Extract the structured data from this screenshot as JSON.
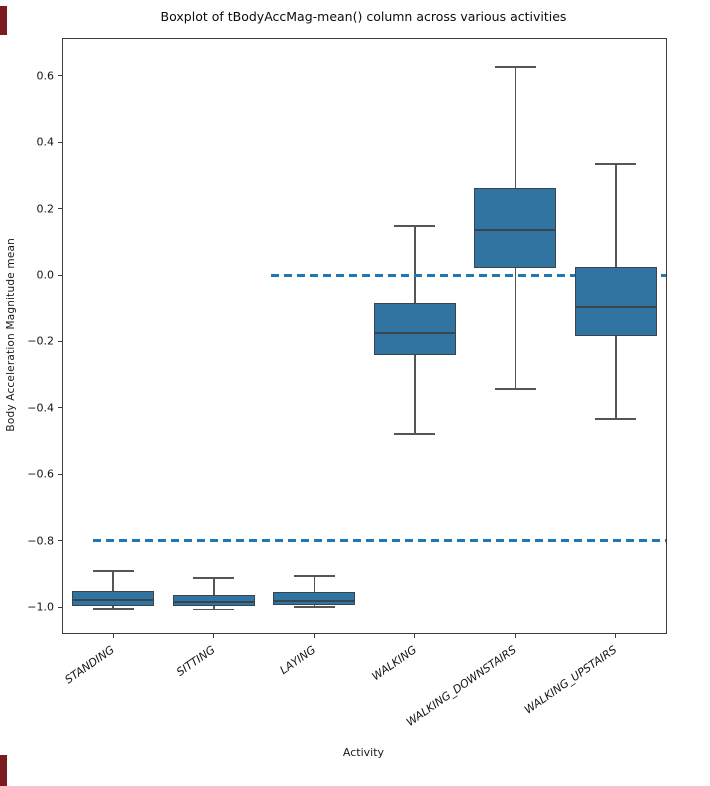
{
  "figure": {
    "title": "Boxplot of tBodyAccMag-mean() column across various activities",
    "xlabel": "Activity",
    "ylabel": "Body Acceleration Magnitude mean"
  },
  "chart_data": {
    "type": "boxplot",
    "title": "Boxplot of tBodyAccMag-mean() column across various activities",
    "xlabel": "Activity",
    "ylabel": "Body Acceleration Magnitude mean",
    "categories": [
      "STANDING",
      "SITTING",
      "LAYING",
      "WALKING",
      "WALKING_DOWNSTAIRS",
      "WALKING_UPSTAIRS"
    ],
    "series": [
      {
        "name": "STANDING",
        "whisker_low": -1.005,
        "q1": -0.995,
        "median": -0.978,
        "q3": -0.95,
        "whisker_high": -0.89
      },
      {
        "name": "SITTING",
        "whisker_low": -1.007,
        "q1": -0.995,
        "median": -0.983,
        "q3": -0.962,
        "whisker_high": -0.911
      },
      {
        "name": "LAYING",
        "whisker_low": -0.999,
        "q1": -0.992,
        "median": -0.98,
        "q3": -0.953,
        "whisker_high": -0.905
      },
      {
        "name": "WALKING",
        "whisker_low": -0.478,
        "q1": -0.241,
        "median": -0.174,
        "q3": -0.084,
        "whisker_high": 0.147
      },
      {
        "name": "WALKING_DOWNSTAIRS",
        "whisker_low": -0.343,
        "q1": 0.021,
        "median": 0.135,
        "q3": 0.262,
        "whisker_high": 0.626
      },
      {
        "name": "WALKING_UPSTAIRS",
        "whisker_low": -0.433,
        "q1": -0.183,
        "median": -0.096,
        "q3": 0.024,
        "whisker_high": 0.334
      }
    ],
    "y_ticks": [
      0.6,
      0.4,
      0.2,
      0.0,
      -0.2,
      -0.4,
      -0.6,
      -0.8,
      -1.0
    ],
    "y_tick_labels": [
      "0.6",
      "0.4",
      "0.2",
      "0.0",
      "−0.2",
      "−0.4",
      "−0.6",
      "−0.8",
      "−1.0"
    ],
    "ylim": [
      -1.077,
      0.71
    ],
    "grid": false,
    "legend": null,
    "reference_lines": [
      {
        "y": 0.0,
        "style": "dashed",
        "color": "#1f77b4",
        "x_start_frac": 0.345,
        "x_end_frac": 1.0
      },
      {
        "y": -0.8,
        "style": "dashed",
        "color": "#1f77b4",
        "x_start_frac": 0.05,
        "x_end_frac": 1.0
      }
    ],
    "colors": {
      "box_fill": "#3274a1",
      "box_edge": "#36454f",
      "median": "#36454f",
      "whisker": "#555555",
      "axis": "#3d3d3d"
    }
  },
  "edge_marks": {
    "color": "#7a1b20"
  }
}
